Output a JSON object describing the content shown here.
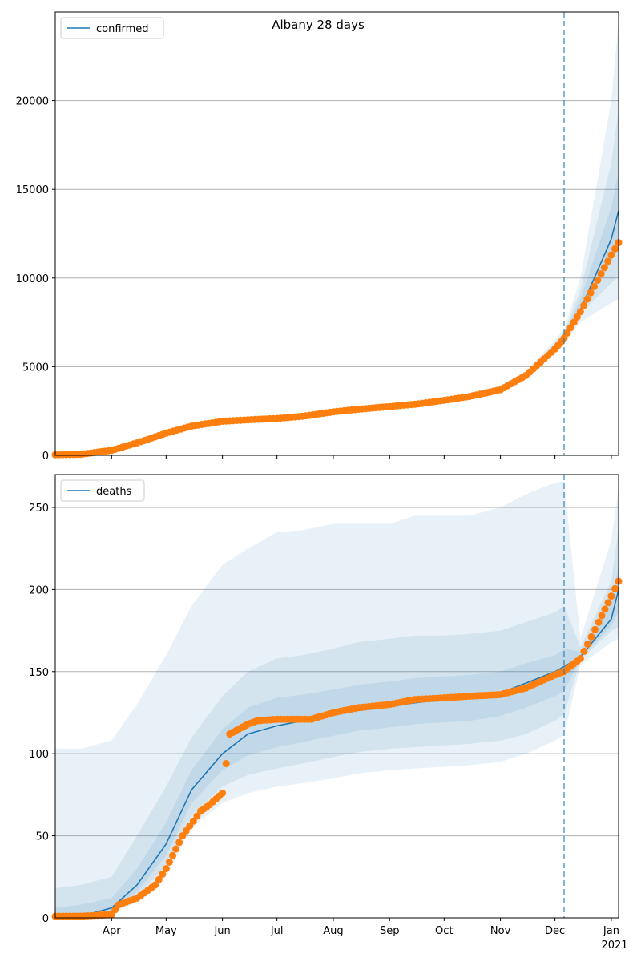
{
  "title": "Albany 28 days",
  "colors": {
    "model": "#1f77b4",
    "observed": "#ff7f0e",
    "band": "#1f77b4",
    "grid": "#b0b0b0"
  },
  "x_axis": {
    "start": "2020-03-01",
    "end": "2021-01-05",
    "ticks": [
      {
        "label": "Apr",
        "date": "2020-04-01"
      },
      {
        "label": "May",
        "date": "2020-05-01"
      },
      {
        "label": "Jun",
        "date": "2020-06-01"
      },
      {
        "label": "Jul",
        "date": "2020-07-01"
      },
      {
        "label": "Aug",
        "date": "2020-08-01"
      },
      {
        "label": "Sep",
        "date": "2020-09-01"
      },
      {
        "label": "Oct",
        "date": "2020-10-01"
      },
      {
        "label": "Nov",
        "date": "2020-11-01"
      },
      {
        "label": "Dec",
        "date": "2020-12-01"
      },
      {
        "label": "Jan",
        "date": "2021-01-01"
      }
    ],
    "year_label": "2021",
    "forecast_start": "2020-12-06"
  },
  "chart_data": [
    {
      "type": "line",
      "legend": "confirmed",
      "legend_position": "top-left",
      "ylim": [
        0,
        25000
      ],
      "yticks": [
        0,
        5000,
        10000,
        15000,
        20000
      ],
      "grid": true,
      "model": {
        "x": [
          "2020-03-01",
          "2020-03-15",
          "2020-04-01",
          "2020-04-15",
          "2020-05-01",
          "2020-05-15",
          "2020-06-01",
          "2020-06-15",
          "2020-07-01",
          "2020-07-15",
          "2020-08-01",
          "2020-08-15",
          "2020-09-01",
          "2020-09-15",
          "2020-10-01",
          "2020-10-15",
          "2020-11-01",
          "2020-11-15",
          "2020-12-01",
          "2020-12-06",
          "2020-12-15",
          "2021-01-01",
          "2021-01-05"
        ],
        "y": [
          20,
          50,
          250,
          650,
          1200,
          1650,
          1900,
          2000,
          2100,
          2200,
          2450,
          2600,
          2750,
          2900,
          3100,
          3350,
          3750,
          4500,
          6100,
          6700,
          8200,
          12200,
          13800
        ],
        "bands": [
          {
            "lower": [
              0,
              20,
              180,
              540,
              1050,
              1500,
              1800,
              1900,
              2000,
              2100,
              2350,
              2500,
              2650,
              2800,
              3000,
              3200,
              3600,
              4300,
              5800,
              6400,
              7500,
              8600,
              8800
            ],
            "upper": [
              40,
              90,
              320,
              780,
              1380,
              1800,
              2050,
              2150,
              2250,
              2350,
              2600,
              2750,
              2900,
              3050,
              3250,
              3500,
              3950,
              4750,
              6500,
              7100,
              10000,
              20000,
              24500
            ]
          },
          {
            "lower": [
              0,
              30,
              200,
              580,
              1100,
              1560,
              1850,
              1950,
              2040,
              2150,
              2390,
              2540,
              2690,
              2840,
              3040,
              3260,
              3660,
              4380,
              5900,
              6500,
              8000,
              9700,
              10100
            ],
            "upper": [
              35,
              75,
              300,
              740,
              1320,
              1750,
              1990,
              2100,
              2200,
              2300,
              2550,
              2700,
              2850,
              3000,
              3200,
              3450,
              3870,
              4650,
              6350,
              6950,
              9300,
              16500,
              19500
            ]
          },
          {
            "lower": [
              5,
              38,
              220,
              610,
              1140,
              1600,
              1880,
              1975,
              2070,
              2175,
              2420,
              2570,
              2720,
              2870,
              3070,
              3310,
              3700,
              4440,
              6000,
              6600,
              8100,
              10900,
              11700
            ],
            "upper": [
              30,
              62,
              280,
              700,
              1260,
              1700,
              1930,
              2040,
              2140,
              2240,
              2500,
              2650,
              2800,
              2950,
              3150,
              3400,
              3820,
              4580,
              6250,
              6850,
              8800,
              14000,
              16000
            ]
          }
        ]
      },
      "observed": {
        "x": [
          "2020-03-01",
          "2020-03-15",
          "2020-04-01",
          "2020-04-15",
          "2020-05-01",
          "2020-05-15",
          "2020-06-01",
          "2020-06-15",
          "2020-07-01",
          "2020-07-15",
          "2020-08-01",
          "2020-08-15",
          "2020-09-01",
          "2020-09-15",
          "2020-10-01",
          "2020-10-15",
          "2020-11-01",
          "2020-11-15",
          "2020-12-01",
          "2020-12-06",
          "2020-12-15",
          "2021-01-01",
          "2021-01-05"
        ],
        "y": [
          30,
          60,
          280,
          700,
          1250,
          1650,
          1920,
          2000,
          2080,
          2200,
          2450,
          2600,
          2750,
          2880,
          3100,
          3320,
          3700,
          4500,
          6000,
          6600,
          8100,
          11300,
          12000
        ]
      }
    },
    {
      "type": "line",
      "legend": "deaths",
      "legend_position": "top-left",
      "ylim": [
        0,
        270
      ],
      "yticks": [
        0,
        50,
        100,
        150,
        200,
        250
      ],
      "grid": true,
      "model": {
        "x": [
          "2020-03-01",
          "2020-03-15",
          "2020-04-01",
          "2020-04-15",
          "2020-05-01",
          "2020-05-15",
          "2020-06-01",
          "2020-06-15",
          "2020-07-01",
          "2020-07-15",
          "2020-08-01",
          "2020-08-15",
          "2020-09-01",
          "2020-09-15",
          "2020-10-01",
          "2020-10-15",
          "2020-11-01",
          "2020-11-15",
          "2020-12-01",
          "2020-12-06",
          "2020-12-15",
          "2021-01-01",
          "2021-01-05"
        ],
        "y": [
          0,
          1,
          6,
          20,
          45,
          78,
          100,
          112,
          117,
          120,
          124,
          127,
          129,
          131,
          133,
          134,
          137,
          143,
          150,
          153,
          159,
          182,
          200
        ],
        "bands": [
          {
            "lower": [
              0,
              0,
              2,
              10,
              25,
              55,
              70,
              76,
              80,
              82,
              85,
              88,
              90,
              91,
              92,
              93,
              95,
              100,
              108,
              111,
              154,
              168,
              170
            ],
            "upper": [
              103,
              103,
              108,
              130,
              160,
              190,
              215,
              225,
              235,
              236,
              240,
              240,
              240,
              245,
              245,
              245,
              250,
              258,
              265,
              266,
              170,
              230,
              262
            ]
          },
          {
            "lower": [
              0,
              0,
              3,
              13,
              32,
              62,
              80,
              87,
              91,
              94,
              98,
              101,
              103,
              104,
              105,
              106,
              108,
              112,
              120,
              124,
              157,
              175,
              177
            ],
            "upper": [
              18,
              20,
              25,
              50,
              80,
              110,
              135,
              150,
              158,
              160,
              164,
              168,
              170,
              172,
              172,
              173,
              175,
              180,
              186,
              190,
              165,
              205,
              238
            ]
          },
          {
            "lower": [
              0,
              0,
              4,
              16,
              38,
              70,
              90,
              99,
              104,
              107,
              111,
              114,
              116,
              118,
              119,
              120,
              123,
              128,
              135,
              138,
              158,
              178,
              186
            ],
            "upper": [
              6,
              8,
              12,
              30,
              58,
              90,
              115,
              128,
              134,
              136,
              139,
              142,
              144,
              146,
              147,
              148,
              150,
              155,
              160,
              164,
              162,
              192,
              215
            ]
          }
        ]
      },
      "observed": {
        "x": [
          "2020-03-01",
          "2020-03-15",
          "2020-04-01",
          "2020-04-05",
          "2020-04-15",
          "2020-04-25",
          "2020-05-01",
          "2020-05-10",
          "2020-05-20",
          "2020-05-25",
          "2020-06-01",
          "2020-06-05",
          "2020-06-10",
          "2020-06-15",
          "2020-06-20",
          "2020-07-01",
          "2020-07-20",
          "2020-08-01",
          "2020-08-15",
          "2020-09-01",
          "2020-09-15",
          "2020-10-01",
          "2020-10-15",
          "2020-11-01",
          "2020-11-15",
          "2020-12-01",
          "2020-12-06",
          "2020-12-15",
          "2020-12-25",
          "2021-01-01",
          "2021-01-05"
        ],
        "y": [
          1,
          1,
          2,
          8,
          12,
          20,
          30,
          50,
          65,
          69,
          76,
          112,
          115,
          118,
          120,
          121,
          121,
          125,
          128,
          130,
          133,
          134,
          135,
          136,
          140,
          148,
          150,
          158,
          180,
          196,
          205
        ]
      }
    }
  ]
}
